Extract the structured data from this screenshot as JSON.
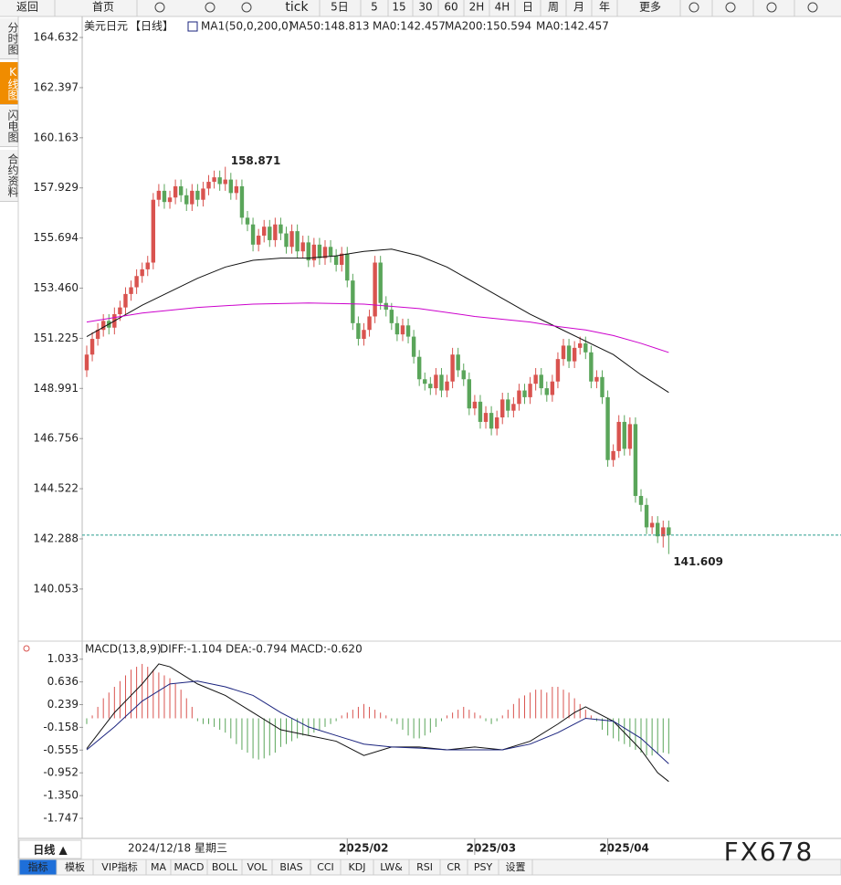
{
  "toolbar": [
    "返回",
    "首页",
    "tick",
    "5日",
    "5",
    "15",
    "30",
    "60",
    "2H",
    "4H",
    "日",
    "周",
    "月",
    "年",
    "更多"
  ],
  "side_tabs": [
    "分时图",
    "K线图",
    "闪电图",
    "合约资料"
  ],
  "chart_data": [
    {
      "type": "candlestick",
      "symbol": "美元日元",
      "period": "【日线】",
      "legend": [
        "MA1(50,0,200,0)",
        "MA50:148.813",
        "MA0:142.457",
        "MA200:150.594",
        "MA0:142.457"
      ],
      "legend_colors": [
        "#222",
        "#222",
        "#1a237e",
        "#cc00cc",
        "#f08c00"
      ],
      "up_color": "#d9534f",
      "down_color": "#5aa55a",
      "xlim": [
        -0.82,
        136.08
      ],
      "xticks": [
        {
          "value": 47,
          "label": "2025/02"
        },
        {
          "value": 70,
          "label": "2025/03"
        },
        {
          "value": 94,
          "label": "2025/04"
        }
      ],
      "ylim": [
        137.81,
        165.57
      ],
      "yticks": [
        164.632,
        162.397,
        160.163,
        157.929,
        155.694,
        {
          "value": 153.46,
          "label": "153.460"
        },
        151.225,
        148.991,
        146.756,
        144.522,
        142.288,
        140.053
      ],
      "candles": [
        [
          149.8,
          150.9,
          149.5,
          150.5
        ],
        [
          150.5,
          151.5,
          150.2,
          151.2
        ],
        [
          151.2,
          151.9,
          150.9,
          151.6
        ],
        [
          151.6,
          152.3,
          151.3,
          152.0
        ],
        [
          152.0,
          152.3,
          151.4,
          151.7
        ],
        [
          151.7,
          152.6,
          151.4,
          152.3
        ],
        [
          152.3,
          152.9,
          152.0,
          152.6
        ],
        [
          152.6,
          153.5,
          152.3,
          153.2
        ],
        [
          153.2,
          153.8,
          152.9,
          153.5
        ],
        [
          153.5,
          154.3,
          153.2,
          154.0
        ],
        [
          154.0,
          154.6,
          153.7,
          154.3
        ],
        [
          154.3,
          154.9,
          154.0,
          154.6
        ],
        [
          154.6,
          157.7,
          154.3,
          157.4
        ],
        [
          157.4,
          158.1,
          157.1,
          157.8
        ],
        [
          157.8,
          158.1,
          157.0,
          157.3
        ],
        [
          157.3,
          157.8,
          157.0,
          157.5
        ],
        [
          157.5,
          158.3,
          157.2,
          158.0
        ],
        [
          158.0,
          158.3,
          157.3,
          157.6
        ],
        [
          157.6,
          157.9,
          156.9,
          157.2
        ],
        [
          157.2,
          158.1,
          156.9,
          157.8
        ],
        [
          157.8,
          158.1,
          157.1,
          157.4
        ],
        [
          157.4,
          158.2,
          157.1,
          157.9
        ],
        [
          157.9,
          158.5,
          157.6,
          158.2
        ],
        [
          158.2,
          158.7,
          157.9,
          158.4
        ],
        [
          158.4,
          158.7,
          157.8,
          158.1
        ],
        [
          158.1,
          158.871,
          157.8,
          158.3
        ],
        [
          158.3,
          158.6,
          157.4,
          157.7
        ],
        [
          157.7,
          158.3,
          157.4,
          158.0
        ],
        [
          158.0,
          158.3,
          156.3,
          156.6
        ],
        [
          156.6,
          156.9,
          156.0,
          156.3
        ],
        [
          156.3,
          156.6,
          155.1,
          155.4
        ],
        [
          155.4,
          156.1,
          155.1,
          155.8
        ],
        [
          155.8,
          156.5,
          155.5,
          156.2
        ],
        [
          156.2,
          156.5,
          155.3,
          155.6
        ],
        [
          155.6,
          156.6,
          155.3,
          156.3
        ],
        [
          156.3,
          156.6,
          155.6,
          155.9
        ],
        [
          155.9,
          156.2,
          155.0,
          155.3
        ],
        [
          155.3,
          156.3,
          155.0,
          156.0
        ],
        [
          156.0,
          156.3,
          154.8,
          155.1
        ],
        [
          155.1,
          155.8,
          154.8,
          155.5
        ],
        [
          155.5,
          155.8,
          154.4,
          154.7
        ],
        [
          154.7,
          155.7,
          154.4,
          155.4
        ],
        [
          155.4,
          155.7,
          154.5,
          154.8
        ],
        [
          154.8,
          155.6,
          154.5,
          155.3
        ],
        [
          155.3,
          155.6,
          154.6,
          154.9
        ],
        [
          154.9,
          155.2,
          154.2,
          154.5
        ],
        [
          154.5,
          155.3,
          154.2,
          155.0
        ],
        [
          155.0,
          155.3,
          153.5,
          153.8
        ],
        [
          153.8,
          154.1,
          151.6,
          151.9
        ],
        [
          151.9,
          152.2,
          150.9,
          151.2
        ],
        [
          151.2,
          151.9,
          150.9,
          151.6
        ],
        [
          151.6,
          152.5,
          151.3,
          152.2
        ],
        [
          152.2,
          154.9,
          151.9,
          154.6
        ],
        [
          154.6,
          154.9,
          152.5,
          152.8
        ],
        [
          152.8,
          153.1,
          152.2,
          152.5
        ],
        [
          152.5,
          152.8,
          151.6,
          151.9
        ],
        [
          151.9,
          152.2,
          151.1,
          151.4
        ],
        [
          151.4,
          152.1,
          151.1,
          151.8
        ],
        [
          151.8,
          152.1,
          151.0,
          151.3
        ],
        [
          151.3,
          151.6,
          150.1,
          150.4
        ],
        [
          150.4,
          150.7,
          149.1,
          149.4
        ],
        [
          149.4,
          149.7,
          148.9,
          149.2
        ],
        [
          149.2,
          149.5,
          148.7,
          149.0
        ],
        [
          149.0,
          149.9,
          148.7,
          149.6
        ],
        [
          149.6,
          149.9,
          148.6,
          148.9
        ],
        [
          148.9,
          149.6,
          148.6,
          149.3
        ],
        [
          149.3,
          150.8,
          149.0,
          150.5
        ],
        [
          150.5,
          150.8,
          149.5,
          149.8
        ],
        [
          149.8,
          150.1,
          149.1,
          149.4
        ],
        [
          149.4,
          149.7,
          147.8,
          148.1
        ],
        [
          148.1,
          148.7,
          147.8,
          148.4
        ],
        [
          148.4,
          148.7,
          147.2,
          147.5
        ],
        [
          147.5,
          148.2,
          147.2,
          147.9
        ],
        [
          147.9,
          148.2,
          146.9,
          147.2
        ],
        [
          147.2,
          148.0,
          146.9,
          147.7
        ],
        [
          147.7,
          148.8,
          147.4,
          148.5
        ],
        [
          148.5,
          148.8,
          147.7,
          148.0
        ],
        [
          148.0,
          148.6,
          147.7,
          148.3
        ],
        [
          148.3,
          149.2,
          148.0,
          148.9
        ],
        [
          148.9,
          149.2,
          148.3,
          148.6
        ],
        [
          148.6,
          149.5,
          148.3,
          149.2
        ],
        [
          149.2,
          149.9,
          148.9,
          149.6
        ],
        [
          149.6,
          149.9,
          148.7,
          149.0
        ],
        [
          149.0,
          149.3,
          148.4,
          148.7
        ],
        [
          148.7,
          149.6,
          148.4,
          149.3
        ],
        [
          149.3,
          150.6,
          149.0,
          150.3
        ],
        [
          150.3,
          151.2,
          150.0,
          150.9
        ],
        [
          150.9,
          151.2,
          149.9,
          150.2
        ],
        [
          150.2,
          151.1,
          149.9,
          150.8
        ],
        [
          150.8,
          151.3,
          150.5,
          151.0
        ],
        [
          151.0,
          151.3,
          150.3,
          150.6
        ],
        [
          150.6,
          150.9,
          149.0,
          149.3
        ],
        [
          149.3,
          149.8,
          149.0,
          149.5
        ],
        [
          149.5,
          149.8,
          148.3,
          148.6
        ],
        [
          148.6,
          148.9,
          145.5,
          145.8
        ],
        [
          145.8,
          146.5,
          145.5,
          146.2
        ],
        [
          146.2,
          147.8,
          145.9,
          147.5
        ],
        [
          147.5,
          147.8,
          146.0,
          146.3
        ],
        [
          146.3,
          147.7,
          146.0,
          147.4
        ],
        [
          147.4,
          147.7,
          143.9,
          144.2
        ],
        [
          144.2,
          144.5,
          143.5,
          143.8
        ],
        [
          143.8,
          144.1,
          142.5,
          142.8
        ],
        [
          142.8,
          143.3,
          142.5,
          143.0
        ],
        [
          143.0,
          143.3,
          142.1,
          142.4
        ],
        [
          142.4,
          143.1,
          141.9,
          142.8
        ],
        [
          142.8,
          143.1,
          141.609,
          142.457
        ]
      ],
      "series": [
        {
          "name": "MA50",
          "color": "#111111",
          "x": [
            0,
            5,
            10,
            15,
            20,
            25,
            30,
            35,
            40,
            45,
            50,
            55,
            60,
            65,
            70,
            75,
            80,
            85,
            90,
            95,
            100,
            105
          ],
          "values": [
            151.3,
            152.0,
            152.7,
            153.3,
            153.9,
            154.4,
            154.7,
            154.8,
            154.8,
            154.9,
            155.1,
            155.2,
            154.9,
            154.4,
            153.7,
            153.0,
            152.3,
            151.7,
            151.1,
            150.5,
            149.6,
            148.813
          ]
        },
        {
          "name": "MA200",
          "color": "#cc00cc",
          "x": [
            0,
            10,
            20,
            30,
            40,
            50,
            60,
            70,
            80,
            85,
            90,
            95,
            100,
            105
          ],
          "values": [
            151.95,
            152.35,
            152.6,
            152.75,
            152.8,
            152.75,
            152.55,
            152.2,
            151.95,
            151.75,
            151.6,
            151.35,
            151.0,
            150.594
          ]
        }
      ],
      "last_color": "#2a9d8f"
    },
    {
      "type": "macd",
      "legend": [
        "MACD(13,8,9)",
        "DIFF:-1.104",
        "DEA:-0.794",
        "MACD:-0.620"
      ],
      "legend_colors": [
        "#222",
        "#222",
        "#1a237e",
        "#cc00cc"
      ],
      "xlim": [
        -0.82,
        136.08
      ],
      "ylim": [
        -2.05,
        1.3
      ],
      "yticks": [
        1.033,
        0.636,
        0.239,
        -0.158,
        -0.555,
        -0.952,
        {
          "value": -1.35,
          "label": "-1.350"
        },
        -1.747
      ],
      "up_color": "#d9534f",
      "down_color": "#5aa55a",
      "histogram": [
        -0.1,
        0.05,
        0.2,
        0.35,
        0.45,
        0.55,
        0.65,
        0.75,
        0.85,
        0.9,
        0.95,
        0.9,
        0.85,
        0.8,
        0.75,
        0.7,
        0.6,
        0.5,
        0.35,
        0.2,
        -0.05,
        -0.1,
        -0.1,
        -0.15,
        -0.2,
        -0.25,
        -0.35,
        -0.45,
        -0.55,
        -0.6,
        -0.7,
        -0.72,
        -0.7,
        -0.65,
        -0.6,
        -0.5,
        -0.45,
        -0.4,
        -0.35,
        -0.3,
        -0.3,
        -0.25,
        -0.2,
        -0.15,
        -0.1,
        -0.05,
        0.05,
        0.1,
        0.15,
        0.2,
        0.25,
        0.2,
        0.15,
        0.1,
        0.05,
        -0.05,
        -0.1,
        -0.2,
        -0.3,
        -0.35,
        -0.35,
        -0.3,
        -0.25,
        -0.15,
        -0.05,
        0.05,
        0.1,
        0.15,
        0.2,
        0.15,
        0.1,
        0.05,
        -0.05,
        -0.1,
        -0.05,
        0.05,
        0.15,
        0.25,
        0.35,
        0.4,
        0.45,
        0.5,
        0.5,
        0.45,
        0.55,
        0.55,
        0.5,
        0.45,
        0.35,
        0.25,
        0.15,
        0.05,
        -0.05,
        -0.2,
        -0.3,
        -0.35,
        -0.4,
        -0.45,
        -0.5,
        -0.55,
        -0.6,
        -0.65,
        -0.65,
        -0.62,
        -0.6,
        -0.62
      ],
      "series": [
        {
          "name": "DIFF",
          "color": "#111111",
          "x": [
            0,
            5,
            10,
            13,
            15,
            20,
            25,
            30,
            35,
            40,
            45,
            50,
            55,
            60,
            65,
            70,
            75,
            80,
            85,
            88,
            90,
            95,
            100,
            103,
            105
          ],
          "values": [
            -0.53,
            0.1,
            0.6,
            0.95,
            0.9,
            0.6,
            0.4,
            0.1,
            -0.2,
            -0.3,
            -0.4,
            -0.65,
            -0.5,
            -0.5,
            -0.55,
            -0.5,
            -0.55,
            -0.4,
            -0.1,
            0.1,
            0.2,
            -0.05,
            -0.55,
            -0.95,
            -1.104
          ]
        },
        {
          "name": "DEA",
          "color": "#1a237e",
          "x": [
            0,
            5,
            10,
            15,
            20,
            25,
            30,
            35,
            40,
            45,
            50,
            55,
            60,
            65,
            70,
            75,
            80,
            85,
            90,
            95,
            100,
            105
          ],
          "values": [
            -0.55,
            -0.15,
            0.3,
            0.6,
            0.65,
            0.55,
            0.4,
            0.1,
            -0.15,
            -0.3,
            -0.45,
            -0.5,
            -0.52,
            -0.55,
            -0.55,
            -0.55,
            -0.45,
            -0.25,
            0.0,
            -0.05,
            -0.35,
            -0.794
          ]
        }
      ]
    }
  ],
  "footer": {
    "period": "日线 ▲",
    "cursor_date": "2024/12/18 星期三",
    "tabs": [
      "指标",
      "模板",
      "VIP指标",
      "MA",
      "MACD",
      "BOLL",
      "VOL",
      "BIAS",
      "CCI",
      "KDJ",
      "LW&",
      "RSI",
      "CR",
      "PSY",
      "设置"
    ]
  },
  "watermark": "FX678"
}
